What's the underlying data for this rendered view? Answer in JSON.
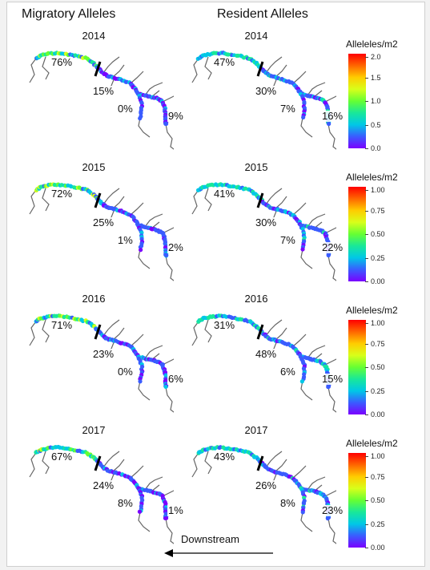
{
  "headers": {
    "migratory": "Migratory Alleles",
    "resident": "Resident Alleles"
  },
  "legend_title": "Alleleles/m2",
  "downstream_label": "Downstream",
  "colors": [
    "#7a00ff",
    "#3a5cff",
    "#00c8e6",
    "#19e899",
    "#66ff33",
    "#d8ff1a",
    "#ffcc00",
    "#ff6600",
    "#ff0000"
  ],
  "chart_data": {
    "type": "map",
    "years": [
      {
        "year": "2014",
        "legend_ticks": [
          "0.0",
          "0.5",
          "1.0",
          "1.5",
          "2.0"
        ],
        "legend_max": 2.0,
        "migratory": {
          "upper": "76%",
          "middle": "15%",
          "branch": "0%",
          "lower": "9%"
        },
        "resident": {
          "upper": "47%",
          "middle": "30%",
          "branch": "7%",
          "lower": "16%"
        }
      },
      {
        "year": "2015",
        "legend_ticks": [
          "0.00",
          "0.25",
          "0.50",
          "0.75",
          "1.00"
        ],
        "legend_max": 1.0,
        "migratory": {
          "upper": "72%",
          "middle": "25%",
          "branch": "1%",
          "lower": "2%"
        },
        "resident": {
          "upper": "41%",
          "middle": "30%",
          "branch": "7%",
          "lower": "22%"
        }
      },
      {
        "year": "2016",
        "legend_ticks": [
          "0.00",
          "0.25",
          "0.50",
          "0.75",
          "1.00"
        ],
        "legend_max": 1.0,
        "migratory": {
          "upper": "71%",
          "middle": "23%",
          "branch": "0%",
          "lower": "6%"
        },
        "resident": {
          "upper": "31%",
          "middle": "48%",
          "branch": "6%",
          "lower": "15%"
        }
      },
      {
        "year": "2017",
        "legend_ticks": [
          "0.00",
          "0.25",
          "0.50",
          "0.75",
          "1.00"
        ],
        "legend_max": 1.0,
        "migratory": {
          "upper": "67%",
          "middle": "24%",
          "branch": "8%",
          "lower": "1%"
        },
        "resident": {
          "upper": "43%",
          "middle": "26%",
          "branch": "8%",
          "lower": "23%"
        }
      }
    ]
  }
}
